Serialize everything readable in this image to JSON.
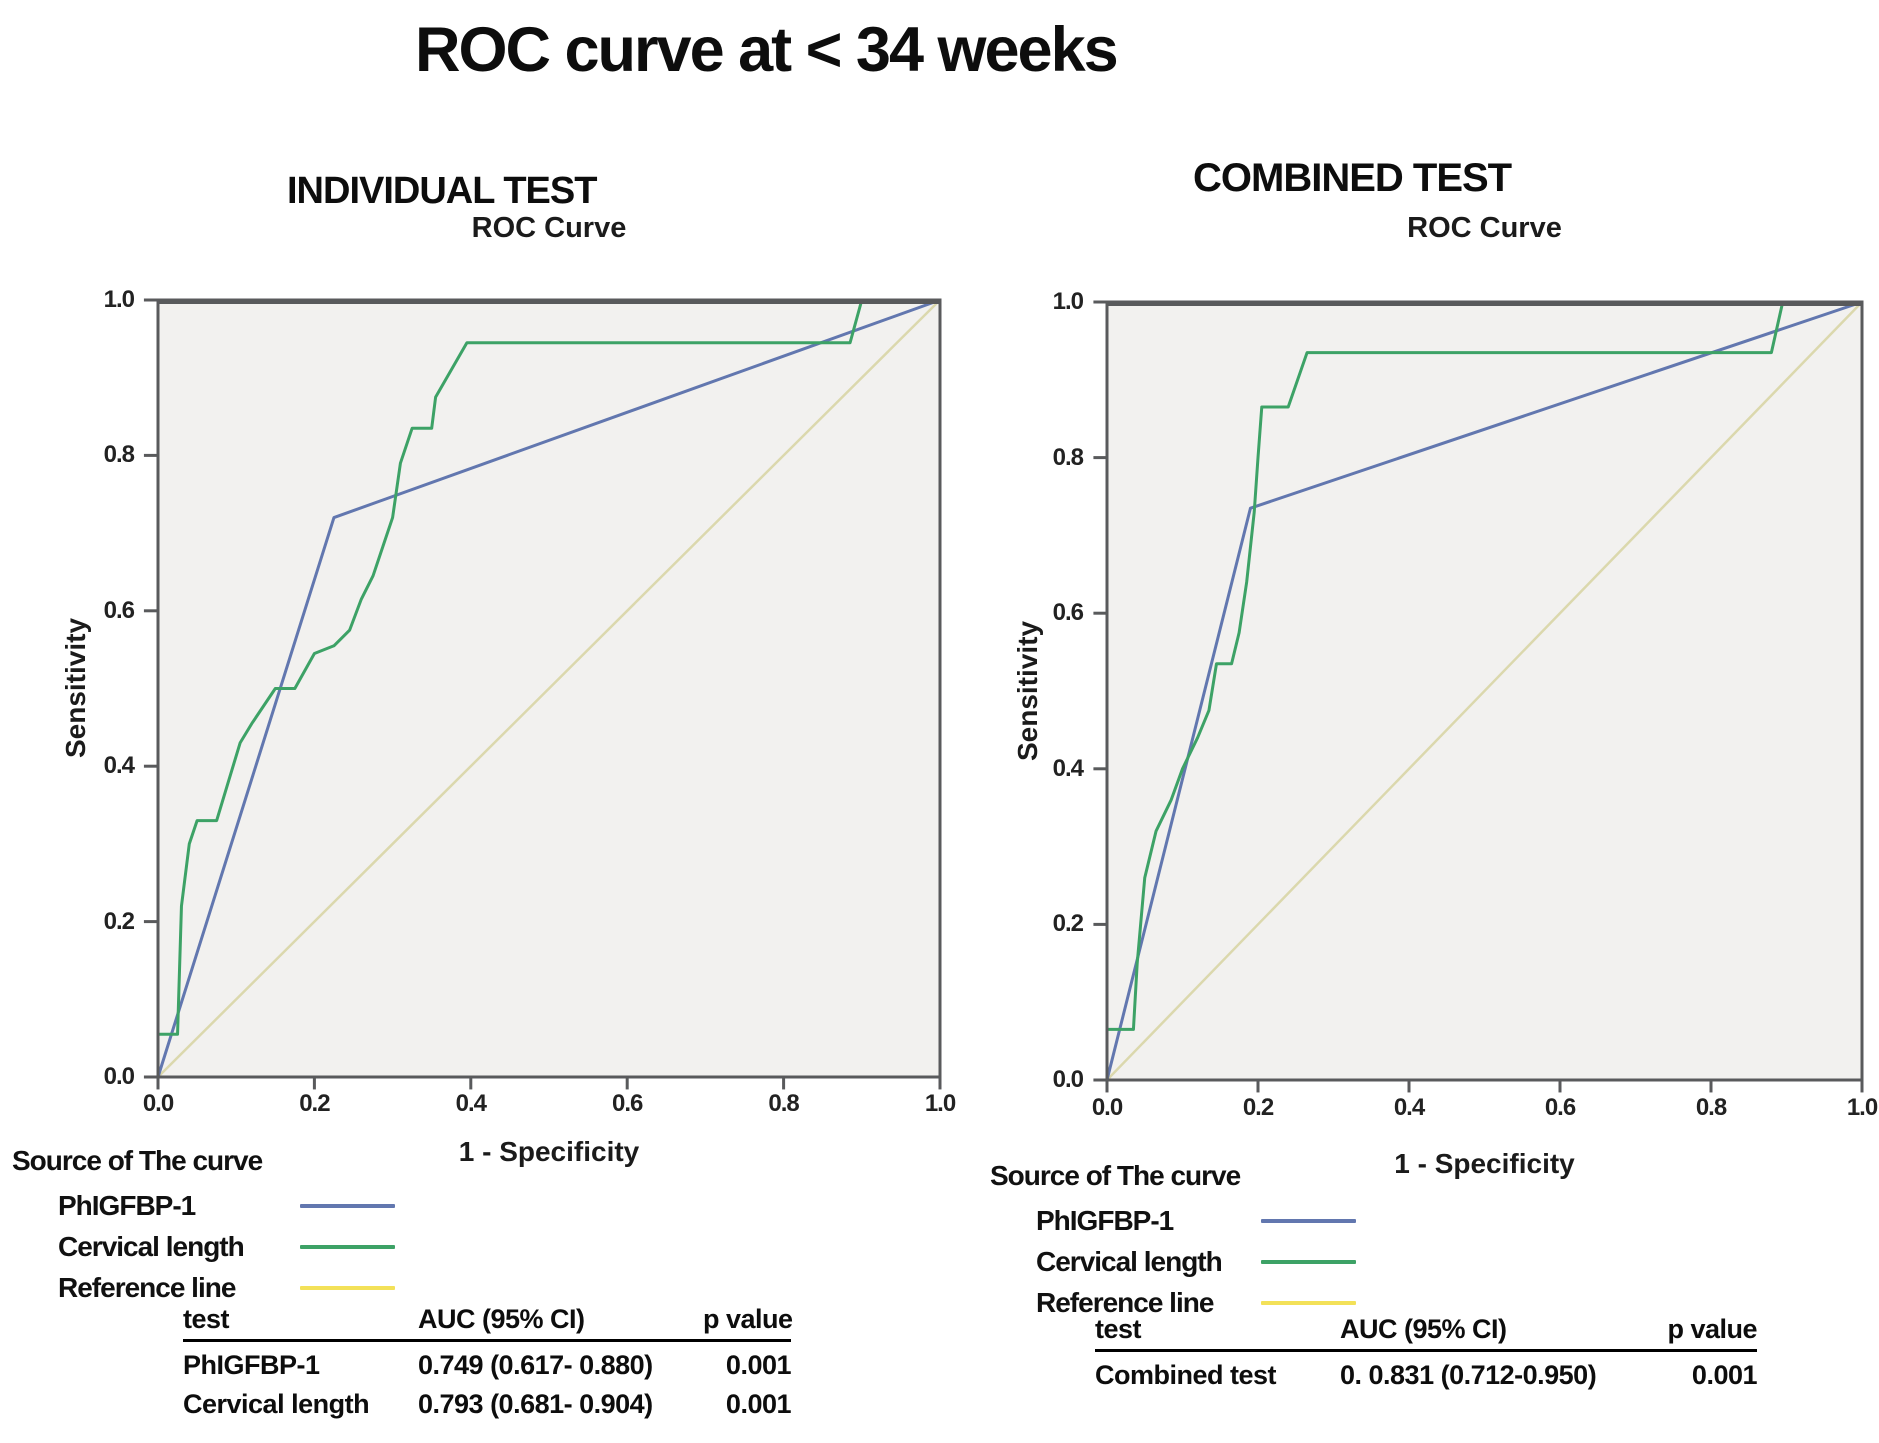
{
  "page": {
    "title": "ROC curve at < 34 weeks"
  },
  "colors": {
    "plot_bg": "#f2f1ef",
    "frame": "#595a5c",
    "phigfbp": "#6277af",
    "cervical": "#3da266",
    "reference_plot": "#dbd8ad",
    "reference_legend": "#f3e158"
  },
  "panels": [
    {
      "heading": "INDIVIDUAL TEST",
      "chart_title": "ROC Curve",
      "xlabel": "1 - Specificity",
      "ylabel": "Sensitivity",
      "legend": {
        "title": "Source of The curve",
        "items": [
          {
            "label": "PhIGFBP-1",
            "color": "#6277af"
          },
          {
            "label": "Cervical length",
            "color": "#3da266"
          },
          {
            "label": "Reference line",
            "color": "#f3e158"
          }
        ]
      },
      "table": {
        "headers": [
          "test",
          "AUC (95% CI)",
          "p value"
        ],
        "rows": [
          [
            "PhIGFBP-1",
            "0.749 (0.617- 0.880)",
            "0.001"
          ],
          [
            "Cervical length",
            "0.793 (0.681- 0.904)",
            "0.001"
          ]
        ]
      }
    },
    {
      "heading": "COMBINED TEST",
      "chart_title": "ROC Curve",
      "xlabel": "1 - Specificity",
      "ylabel": "Sensitivity",
      "legend": {
        "title": "Source of The curve",
        "items": [
          {
            "label": "PhIGFBP-1",
            "color": "#6277af"
          },
          {
            "label": "Cervical length",
            "color": "#3da266"
          },
          {
            "label": "Reference line",
            "color": "#f3e158"
          }
        ]
      },
      "table": {
        "headers": [
          "test",
          "AUC (95% CI)",
          "p value"
        ],
        "rows": [
          [
            "Combined test",
            "0. 0.831 (0.712-0.950)",
            "0.001"
          ]
        ]
      }
    }
  ],
  "chart_data": [
    {
      "type": "line",
      "title": "ROC Curve",
      "xlabel": "1 - Specificity",
      "ylabel": "Sensitivity",
      "xlim": [
        0,
        1
      ],
      "ylim": [
        0,
        1
      ],
      "xticks": [
        0.0,
        0.2,
        0.4,
        0.6,
        0.8,
        1.0
      ],
      "yticks": [
        0.0,
        0.2,
        0.4,
        0.6,
        0.8,
        1.0
      ],
      "grid": false,
      "legend_position": "below-left",
      "series": [
        {
          "name": "PhIGFBP-1",
          "color": "#6277af",
          "points": [
            [
              0,
              0
            ],
            [
              0.225,
              0.72
            ],
            [
              1,
              1
            ]
          ]
        },
        {
          "name": "Cervical length",
          "color": "#3da266",
          "points": [
            [
              0,
              0
            ],
            [
              0,
              0.055
            ],
            [
              0.025,
              0.055
            ],
            [
              0.03,
              0.22
            ],
            [
              0.04,
              0.3
            ],
            [
              0.05,
              0.33
            ],
            [
              0.075,
              0.33
            ],
            [
              0.09,
              0.38
            ],
            [
              0.105,
              0.43
            ],
            [
              0.12,
              0.455
            ],
            [
              0.15,
              0.5
            ],
            [
              0.175,
              0.5
            ],
            [
              0.2,
              0.545
            ],
            [
              0.225,
              0.555
            ],
            [
              0.245,
              0.575
            ],
            [
              0.26,
              0.615
            ],
            [
              0.275,
              0.645
            ],
            [
              0.285,
              0.675
            ],
            [
              0.3,
              0.72
            ],
            [
              0.31,
              0.79
            ],
            [
              0.325,
              0.835
            ],
            [
              0.35,
              0.835
            ],
            [
              0.355,
              0.875
            ],
            [
              0.395,
              0.945
            ],
            [
              0.885,
              0.945
            ],
            [
              0.9,
              1
            ],
            [
              1,
              1
            ]
          ]
        },
        {
          "name": "Reference line",
          "color": "#dbd8ad",
          "points": [
            [
              0,
              0
            ],
            [
              1,
              1
            ]
          ]
        }
      ]
    },
    {
      "type": "line",
      "title": "ROC Curve",
      "xlabel": "1 - Specificity",
      "ylabel": "Sensitivity",
      "xlim": [
        0,
        1
      ],
      "ylim": [
        0,
        1
      ],
      "xticks": [
        0.0,
        0.2,
        0.4,
        0.6,
        0.8,
        1.0
      ],
      "yticks": [
        0.0,
        0.2,
        0.4,
        0.6,
        0.8,
        1.0
      ],
      "grid": false,
      "legend_position": "below-left",
      "series": [
        {
          "name": "PhIGFBP-1",
          "color": "#6277af",
          "points": [
            [
              0,
              0
            ],
            [
              0.19,
              0.735
            ],
            [
              1,
              1
            ]
          ]
        },
        {
          "name": "Cervical length",
          "color": "#3da266",
          "points": [
            [
              0,
              0
            ],
            [
              0,
              0.065
            ],
            [
              0.035,
              0.065
            ],
            [
              0.04,
              0.15
            ],
            [
              0.05,
              0.26
            ],
            [
              0.065,
              0.32
            ],
            [
              0.085,
              0.36
            ],
            [
              0.1,
              0.4
            ],
            [
              0.12,
              0.44
            ],
            [
              0.135,
              0.475
            ],
            [
              0.145,
              0.535
            ],
            [
              0.165,
              0.535
            ],
            [
              0.175,
              0.575
            ],
            [
              0.185,
              0.64
            ],
            [
              0.195,
              0.73
            ],
            [
              0.2,
              0.8
            ],
            [
              0.205,
              0.865
            ],
            [
              0.24,
              0.865
            ],
            [
              0.265,
              0.935
            ],
            [
              0.88,
              0.935
            ],
            [
              0.895,
              1
            ],
            [
              1,
              1
            ]
          ]
        },
        {
          "name": "Reference line",
          "color": "#dbd8ad",
          "points": [
            [
              0,
              0
            ],
            [
              1,
              1
            ]
          ]
        }
      ]
    }
  ]
}
